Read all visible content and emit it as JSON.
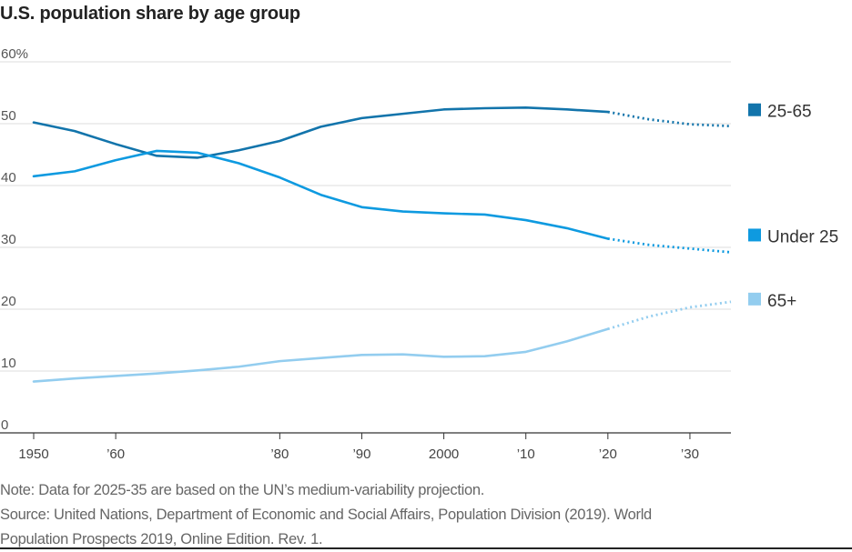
{
  "title": "U.S. population share by age group",
  "notes": {
    "note": "Note: Data for 2025-35 are based on the UN’s medium-variability projection.",
    "source_line1": "Source: United Nations, Department of Economic and Social Affairs, Population Division (2019). World",
    "source_line2": "Population Prospects 2019, Online Edition. Rev. 1."
  },
  "colors": {
    "25-65": "#1274ab",
    "Under 25": "#0e9ae0",
    "65+": "#93cdef"
  },
  "chart_data": {
    "type": "line",
    "title": "U.S. population share by age group",
    "xlabel": "",
    "ylabel": "",
    "xlim": [
      1950,
      2035
    ],
    "ylim": [
      0,
      60
    ],
    "y_ticks": [
      {
        "value": 60,
        "label": "60%"
      },
      {
        "value": 50,
        "label": "50"
      },
      {
        "value": 40,
        "label": "40"
      },
      {
        "value": 30,
        "label": "30"
      },
      {
        "value": 20,
        "label": "20"
      },
      {
        "value": 10,
        "label": "10"
      },
      {
        "value": 0,
        "label": "0"
      }
    ],
    "x_ticks": [
      {
        "value": 1950,
        "label": "1950"
      },
      {
        "value": 1960,
        "label": "’60"
      },
      {
        "value": 1980,
        "label": "’80"
      },
      {
        "value": 1990,
        "label": "’90"
      },
      {
        "value": 2000,
        "label": "2000"
      },
      {
        "value": 2010,
        "label": "’10"
      },
      {
        "value": 2020,
        "label": "’20"
      },
      {
        "value": 2030,
        "label": "’30"
      }
    ],
    "grid": "horizontal",
    "legend_placement": "right, at series ends",
    "projection_start": 2020,
    "x": [
      1950,
      1955,
      1960,
      1965,
      1970,
      1975,
      1980,
      1985,
      1990,
      1995,
      2000,
      2005,
      2010,
      2015,
      2020,
      2025,
      2030,
      2035
    ],
    "series": [
      {
        "name": "25-65",
        "values": [
          50.2,
          48.8,
          46.7,
          44.8,
          44.5,
          45.7,
          47.2,
          49.5,
          50.9,
          51.6,
          52.3,
          52.5,
          52.6,
          52.3,
          51.9,
          50.7,
          49.9,
          49.6
        ]
      },
      {
        "name": "Under 25",
        "values": [
          41.5,
          42.3,
          44.1,
          45.6,
          45.3,
          43.6,
          41.3,
          38.5,
          36.5,
          35.8,
          35.5,
          35.3,
          34.4,
          33.1,
          31.4,
          30.4,
          29.8,
          29.2
        ]
      },
      {
        "name": "65+",
        "values": [
          8.3,
          8.8,
          9.2,
          9.6,
          10.1,
          10.7,
          11.6,
          12.1,
          12.6,
          12.7,
          12.3,
          12.4,
          13.1,
          14.8,
          16.8,
          18.8,
          20.3,
          21.2
        ]
      }
    ]
  }
}
